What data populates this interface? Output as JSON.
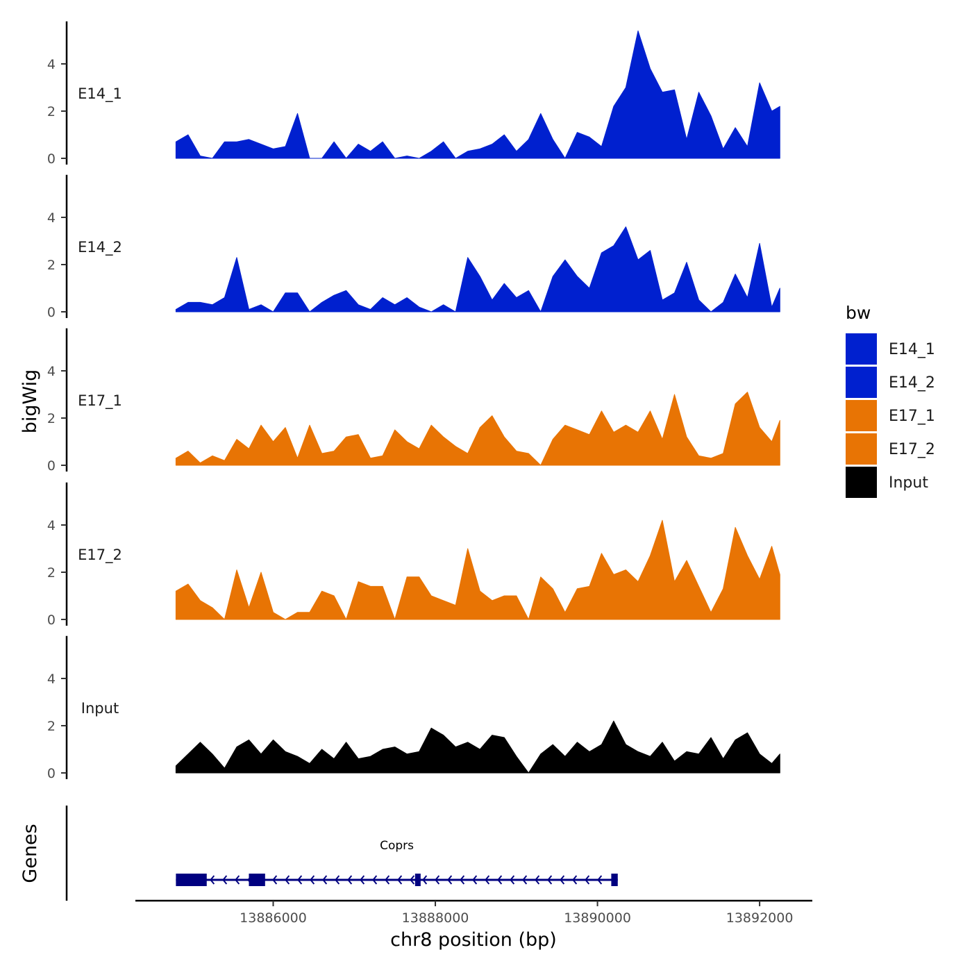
{
  "chart_data": {
    "type": "area",
    "chromosome": "chr8",
    "ylabel": "bigWig",
    "xlabel": "chr8 position (bp)",
    "xlim": [
      13884300,
      13892650
    ],
    "ylim": [
      0,
      5.8
    ],
    "x_ticks": [
      13886000,
      13888000,
      13890000,
      13892000
    ],
    "x_tick_labels": [
      "13886000",
      "13888000",
      "13890000",
      "13892000"
    ],
    "y_ticks": [
      0,
      2,
      4
    ],
    "y_tick_labels": [
      "0",
      "2",
      "4"
    ],
    "legend": {
      "title": "bw",
      "position": "right",
      "entries": [
        {
          "label": "E14_1",
          "color": "#0020CF"
        },
        {
          "label": "E14_2",
          "color": "#0020CF"
        },
        {
          "label": "E17_1",
          "color": "#E87404"
        },
        {
          "label": "E17_2",
          "color": "#E87404"
        },
        {
          "label": "Input",
          "color": "#000000"
        }
      ]
    },
    "x": [
      13884800,
      13884950,
      13885100,
      13885250,
      13885400,
      13885550,
      13885700,
      13885850,
      13886000,
      13886150,
      13886300,
      13886450,
      13886600,
      13886750,
      13886900,
      13887050,
      13887200,
      13887350,
      13887500,
      13887650,
      13887800,
      13887950,
      13888100,
      13888250,
      13888400,
      13888550,
      13888700,
      13888850,
      13889000,
      13889150,
      13889300,
      13889450,
      13889600,
      13889750,
      13889900,
      13890050,
      13890200,
      13890350,
      13890500,
      13890650,
      13890800,
      13890950,
      13891100,
      13891250,
      13891400,
      13891550,
      13891700,
      13891850,
      13892000,
      13892150,
      13892250
    ],
    "series": [
      {
        "name": "E14_1",
        "color": "#0020CF",
        "values": [
          0.7,
          1.0,
          0.1,
          0.0,
          0.7,
          0.7,
          0.8,
          0.6,
          0.4,
          0.5,
          1.9,
          0.0,
          0.0,
          0.7,
          0.0,
          0.6,
          0.3,
          0.7,
          0.0,
          0.1,
          0.0,
          0.3,
          0.7,
          0.0,
          0.3,
          0.4,
          0.6,
          1.0,
          0.3,
          0.8,
          1.9,
          0.8,
          0.0,
          1.1,
          0.9,
          0.5,
          2.2,
          3.0,
          5.4,
          3.8,
          2.8,
          2.9,
          0.8,
          2.8,
          1.8,
          0.4,
          1.3,
          0.5,
          3.2,
          2.0,
          2.2
        ]
      },
      {
        "name": "E14_2",
        "color": "#0020CF",
        "values": [
          0.1,
          0.4,
          0.4,
          0.3,
          0.6,
          2.3,
          0.1,
          0.3,
          0.0,
          0.8,
          0.8,
          0.0,
          0.4,
          0.7,
          0.9,
          0.3,
          0.1,
          0.6,
          0.3,
          0.6,
          0.2,
          0.0,
          0.3,
          0.0,
          2.3,
          1.5,
          0.5,
          1.2,
          0.6,
          0.9,
          0.0,
          1.5,
          2.2,
          1.5,
          1.0,
          2.5,
          2.8,
          3.6,
          2.2,
          2.6,
          0.5,
          0.8,
          2.1,
          0.5,
          0.0,
          0.4,
          1.6,
          0.6,
          2.9,
          0.2,
          1.0
        ]
      },
      {
        "name": "E17_1",
        "color": "#E87404",
        "values": [
          0.3,
          0.6,
          0.1,
          0.4,
          0.2,
          1.1,
          0.7,
          1.7,
          1.0,
          1.6,
          0.3,
          1.7,
          0.5,
          0.6,
          1.2,
          1.3,
          0.3,
          0.4,
          1.5,
          1.0,
          0.7,
          1.7,
          1.2,
          0.8,
          0.5,
          1.6,
          2.1,
          1.2,
          0.6,
          0.5,
          0.0,
          1.1,
          1.7,
          1.5,
          1.3,
          2.3,
          1.4,
          1.7,
          1.4,
          2.3,
          1.1,
          3.0,
          1.2,
          0.4,
          0.3,
          0.5,
          2.6,
          3.1,
          1.6,
          1.0,
          1.9
        ]
      },
      {
        "name": "E17_2",
        "color": "#E87404",
        "values": [
          1.2,
          1.5,
          0.8,
          0.5,
          0.0,
          2.1,
          0.5,
          2.0,
          0.3,
          0.0,
          0.3,
          0.3,
          1.2,
          1.0,
          0.0,
          1.6,
          1.4,
          1.4,
          0.0,
          1.8,
          1.8,
          1.0,
          0.8,
          0.6,
          3.0,
          1.2,
          0.8,
          1.0,
          1.0,
          0.0,
          1.8,
          1.3,
          0.3,
          1.3,
          1.4,
          2.8,
          1.9,
          2.1,
          1.6,
          2.7,
          4.2,
          1.6,
          2.5,
          1.4,
          0.3,
          1.3,
          3.9,
          2.7,
          1.7,
          3.1,
          1.9
        ]
      },
      {
        "name": "Input",
        "color": "#000000",
        "values": [
          0.3,
          0.8,
          1.3,
          0.8,
          0.2,
          1.1,
          1.4,
          0.8,
          1.4,
          0.9,
          0.7,
          0.4,
          1.0,
          0.6,
          1.3,
          0.6,
          0.7,
          1.0,
          1.1,
          0.8,
          0.9,
          1.9,
          1.6,
          1.1,
          1.3,
          1.0,
          1.6,
          1.5,
          0.7,
          0.0,
          0.8,
          1.2,
          0.7,
          1.3,
          0.9,
          1.2,
          2.2,
          1.2,
          0.9,
          0.7,
          1.3,
          0.5,
          0.9,
          0.8,
          1.5,
          0.6,
          1.4,
          1.7,
          0.8,
          0.4,
          0.8
        ]
      }
    ],
    "gene_track": {
      "ylabel": "Genes",
      "gene": {
        "name": "Coprs",
        "start": 13884800,
        "end": 13890250,
        "strand": "-",
        "color": "#000080",
        "exons": [
          [
            13884800,
            13885180
          ],
          [
            13885700,
            13885900
          ],
          [
            13887750,
            13887790
          ],
          [
            13890170,
            13890250
          ]
        ]
      }
    }
  }
}
